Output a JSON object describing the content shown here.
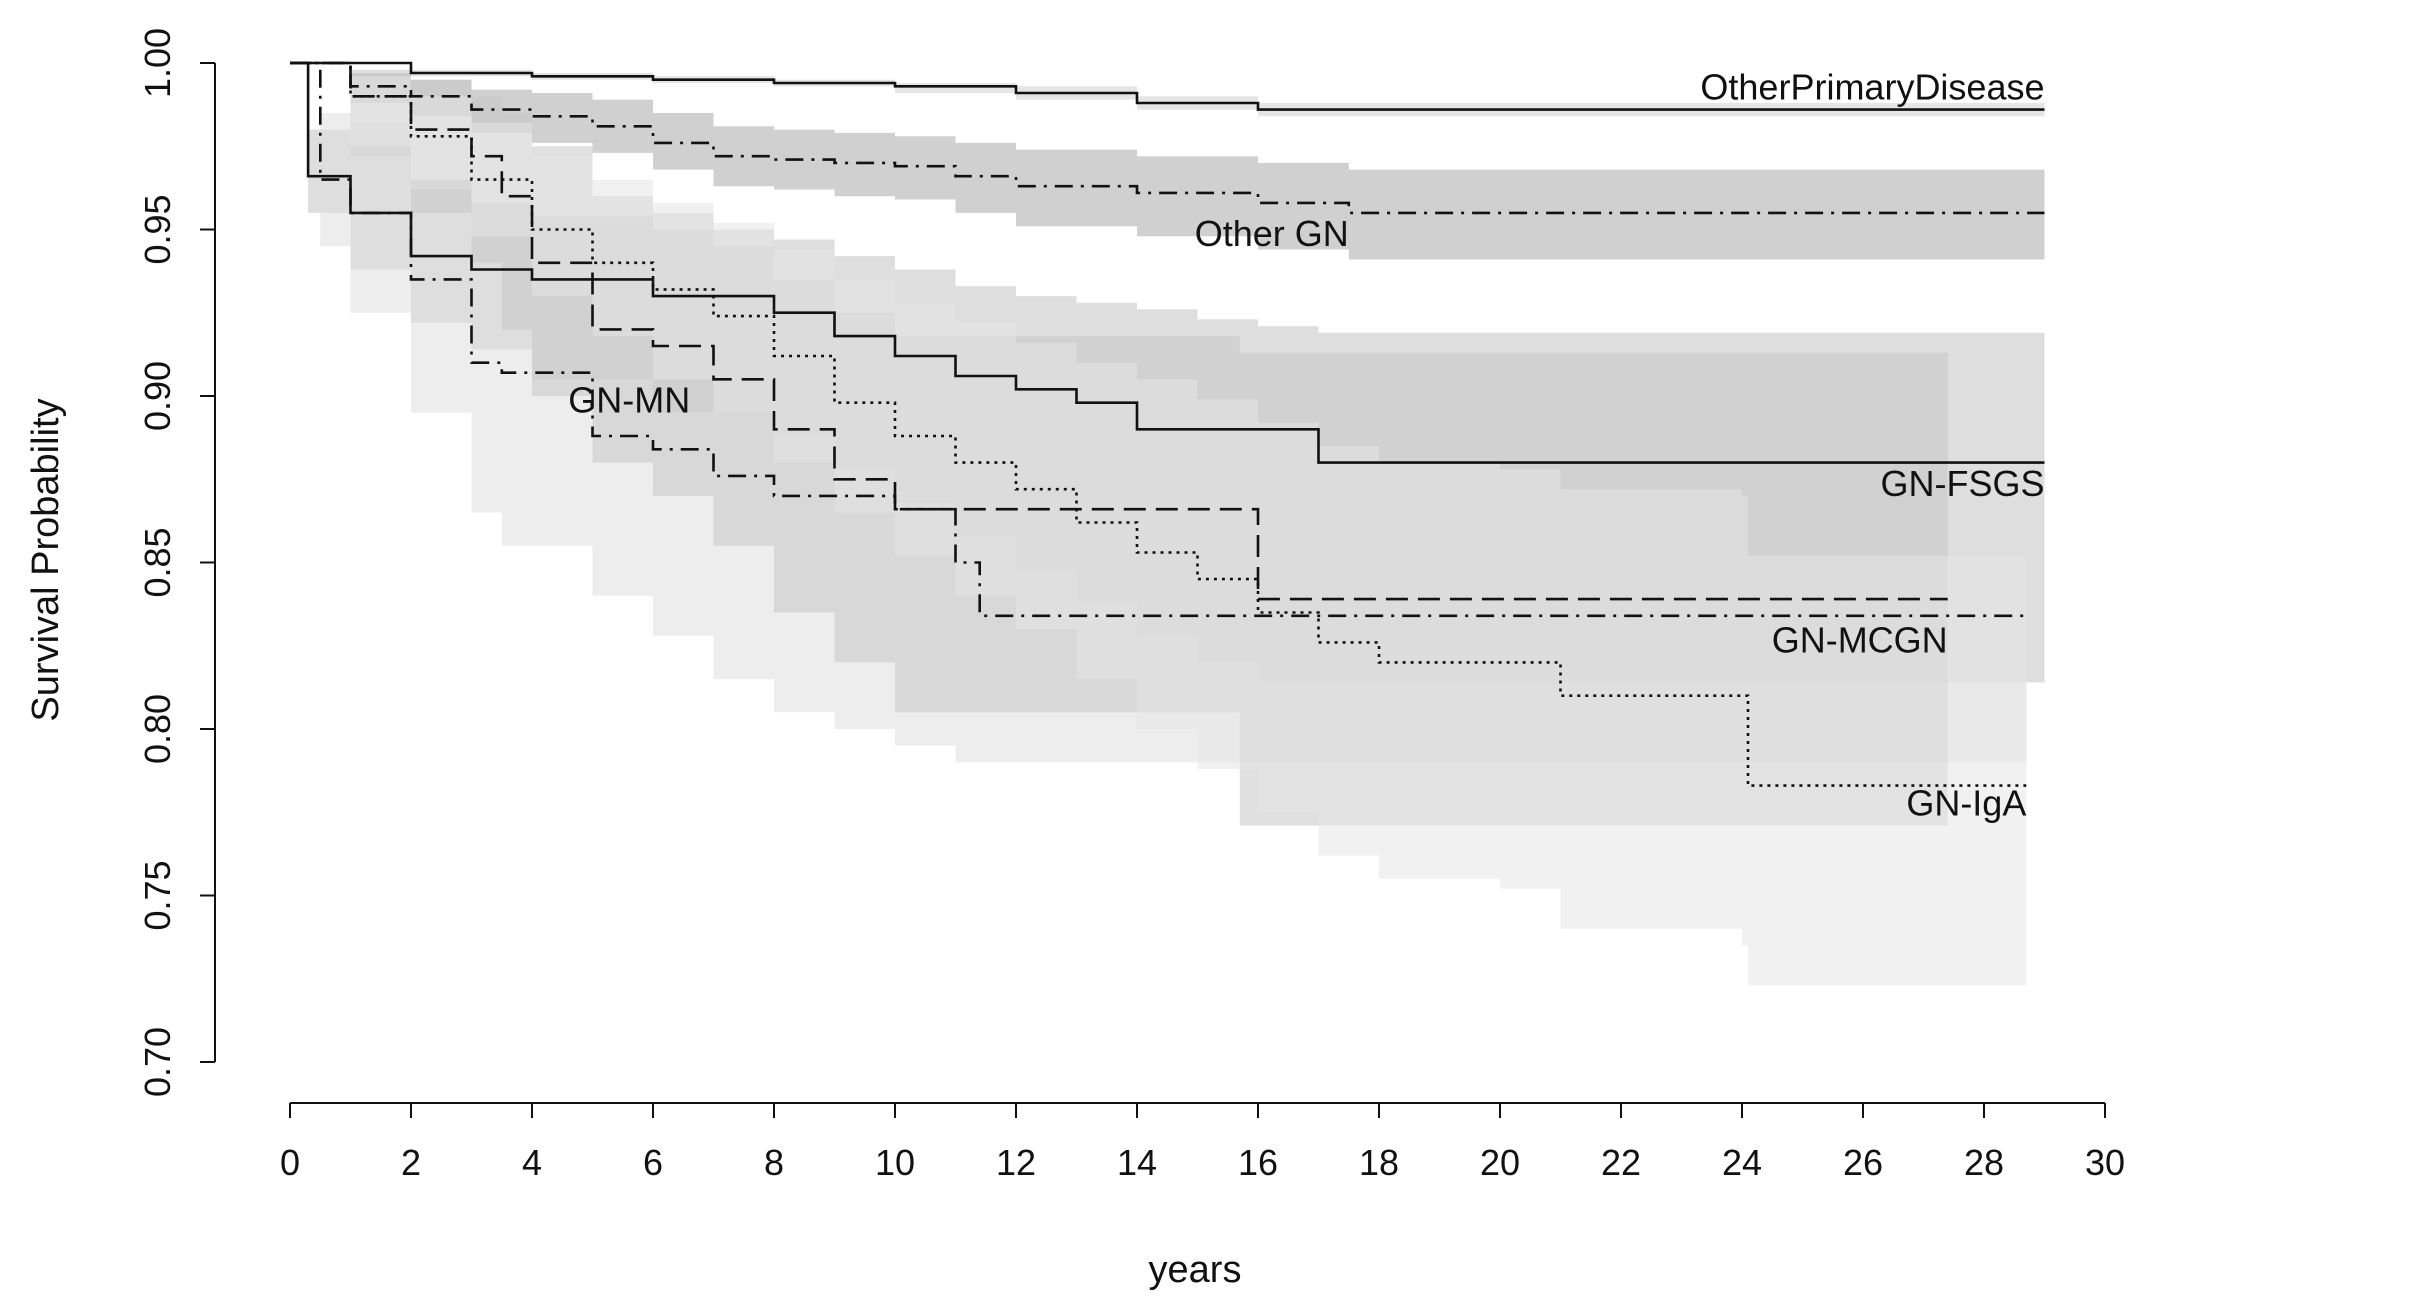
{
  "chart_data": {
    "type": "line",
    "title": "",
    "xlabel": "years",
    "ylabel": "Survival Probability",
    "xlim": [
      0,
      30
    ],
    "ylim": [
      0.7,
      1.0
    ],
    "x_ticks": [
      "0",
      "2",
      "4",
      "6",
      "8",
      "10",
      "12",
      "14",
      "16",
      "18",
      "20",
      "22",
      "24",
      "26",
      "28",
      "30"
    ],
    "y_ticks": [
      "0.70",
      "0.75",
      "0.80",
      "0.85",
      "0.90",
      "0.95",
      "1.00"
    ],
    "grid": false,
    "legend": "none",
    "series": [
      {
        "name": "OtherPrimaryDisease",
        "style": "solid",
        "x": [
          0,
          2,
          4,
          6,
          8,
          10,
          12,
          14,
          16,
          18,
          29
        ],
        "y": [
          1.0,
          0.997,
          0.996,
          0.995,
          0.994,
          0.993,
          0.991,
          0.988,
          0.986,
          0.986,
          0.986
        ],
        "ci_lower": [
          1.0,
          0.996,
          0.995,
          0.994,
          0.993,
          0.991,
          0.989,
          0.986,
          0.984,
          0.984,
          0.984
        ],
        "ci_upper": [
          1.0,
          0.998,
          0.997,
          0.996,
          0.995,
          0.994,
          0.993,
          0.99,
          0.988,
          0.988,
          0.988
        ]
      },
      {
        "name": "Other GN",
        "style": "dashdot",
        "x": [
          0,
          1,
          2,
          3,
          4,
          5,
          6,
          7,
          8,
          9,
          10,
          11,
          12,
          14,
          16,
          17.5,
          29
        ],
        "y": [
          1.0,
          0.993,
          0.99,
          0.986,
          0.984,
          0.981,
          0.976,
          0.972,
          0.971,
          0.97,
          0.969,
          0.966,
          0.963,
          0.961,
          0.958,
          0.955,
          0.955
        ],
        "ci_lower": [
          1.0,
          0.988,
          0.984,
          0.979,
          0.976,
          0.973,
          0.968,
          0.963,
          0.962,
          0.96,
          0.959,
          0.955,
          0.951,
          0.948,
          0.944,
          0.941,
          0.941
        ],
        "ci_upper": [
          1.0,
          0.997,
          0.995,
          0.992,
          0.991,
          0.989,
          0.985,
          0.981,
          0.98,
          0.979,
          0.978,
          0.976,
          0.974,
          0.972,
          0.97,
          0.968,
          0.968
        ]
      },
      {
        "name": "GN-FSGS",
        "style": "solid",
        "x": [
          0,
          0.3,
          1,
          2,
          3,
          4,
          6,
          8,
          9,
          10,
          11,
          12,
          13,
          14,
          15,
          16,
          17,
          29
        ],
        "y": [
          1.0,
          0.966,
          0.955,
          0.942,
          0.938,
          0.935,
          0.93,
          0.925,
          0.918,
          0.912,
          0.906,
          0.902,
          0.898,
          0.89,
          0.89,
          0.89,
          0.88,
          0.88
        ],
        "ci_lower": [
          1.0,
          0.955,
          0.938,
          0.922,
          0.914,
          0.905,
          0.895,
          0.888,
          0.878,
          0.868,
          0.858,
          0.848,
          0.838,
          0.828,
          0.82,
          0.814,
          0.814,
          0.814
        ],
        "ci_upper": [
          1.0,
          0.98,
          0.972,
          0.962,
          0.958,
          0.954,
          0.95,
          0.947,
          0.942,
          0.938,
          0.933,
          0.93,
          0.928,
          0.926,
          0.923,
          0.921,
          0.919,
          0.919
        ]
      },
      {
        "name": "GN-MCGN",
        "style": "dashdot",
        "x": [
          0,
          0.5,
          1,
          2,
          3,
          3.5,
          5,
          6,
          7,
          8,
          9,
          10,
          11,
          11.4,
          28.7
        ],
        "y": [
          1.0,
          0.965,
          0.955,
          0.935,
          0.91,
          0.907,
          0.888,
          0.884,
          0.876,
          0.87,
          0.87,
          0.866,
          0.85,
          0.834,
          0.834
        ],
        "ci_lower": [
          1.0,
          0.945,
          0.925,
          0.895,
          0.865,
          0.855,
          0.84,
          0.828,
          0.815,
          0.805,
          0.8,
          0.795,
          0.79,
          0.79,
          0.79
        ],
        "ci_upper": [
          1.0,
          0.985,
          0.975,
          0.965,
          0.95,
          0.945,
          0.935,
          0.93,
          0.925,
          0.92,
          0.917,
          0.915,
          0.912,
          0.912,
          0.912
        ]
      },
      {
        "name": "GN-MN",
        "style": "longdash",
        "x": [
          0,
          1,
          2,
          3,
          3.5,
          4,
          5,
          6,
          7,
          8,
          9,
          10,
          15.7,
          16,
          27.4
        ],
        "y": [
          1.0,
          0.99,
          0.98,
          0.972,
          0.96,
          0.94,
          0.92,
          0.915,
          0.905,
          0.89,
          0.875,
          0.866,
          0.866,
          0.839,
          0.839
        ],
        "ci_lower": [
          1.0,
          0.972,
          0.955,
          0.94,
          0.92,
          0.9,
          0.88,
          0.87,
          0.855,
          0.835,
          0.82,
          0.805,
          0.771,
          0.771,
          0.771
        ],
        "ci_upper": [
          1.0,
          0.998,
          0.995,
          0.99,
          0.985,
          0.975,
          0.96,
          0.955,
          0.945,
          0.935,
          0.925,
          0.918,
          0.913,
          0.913,
          0.913
        ]
      },
      {
        "name": "GN-IgA",
        "style": "dotted",
        "x": [
          0,
          1,
          2,
          3,
          4,
          5,
          6,
          7,
          8,
          9,
          10,
          11,
          12,
          13,
          14,
          15,
          16,
          17,
          18,
          20,
          21,
          24,
          24.1,
          28.7
        ],
        "y": [
          1.0,
          0.99,
          0.978,
          0.965,
          0.95,
          0.94,
          0.932,
          0.924,
          0.912,
          0.898,
          0.888,
          0.88,
          0.872,
          0.862,
          0.853,
          0.845,
          0.835,
          0.826,
          0.82,
          0.82,
          0.81,
          0.81,
          0.783,
          0.783
        ],
        "ci_lower": [
          1.0,
          0.982,
          0.965,
          0.948,
          0.93,
          0.918,
          0.905,
          0.895,
          0.88,
          0.865,
          0.852,
          0.84,
          0.83,
          0.815,
          0.8,
          0.788,
          0.775,
          0.762,
          0.755,
          0.752,
          0.74,
          0.735,
          0.723,
          0.723
        ],
        "ci_upper": [
          1.0,
          0.996,
          0.99,
          0.982,
          0.972,
          0.965,
          0.958,
          0.952,
          0.944,
          0.935,
          0.928,
          0.922,
          0.916,
          0.91,
          0.905,
          0.899,
          0.892,
          0.885,
          0.88,
          0.878,
          0.872,
          0.87,
          0.852,
          0.848
        ]
      }
    ],
    "annotations": [
      {
        "text": "OtherPrimaryDisease",
        "x": 29,
        "y": 0.989,
        "anchor": "end"
      },
      {
        "text": "Other GN",
        "x": 17.5,
        "y": 0.945,
        "anchor": "end"
      },
      {
        "text": "GN-MN",
        "x": 4.6,
        "y": 0.895,
        "anchor": "start"
      },
      {
        "text": "GN-FSGS",
        "x": 29,
        "y": 0.87,
        "anchor": "end"
      },
      {
        "text": "GN-MCGN",
        "x": 27.4,
        "y": 0.823,
        "anchor": "end"
      },
      {
        "text": "GN-IgA",
        "x": 28.7,
        "y": 0.774,
        "anchor": "end"
      }
    ]
  },
  "colors": {
    "lines": "#111111",
    "ci_fills": [
      "#cfcfcf",
      "#a9a9a9",
      "#c2c2c2",
      "#dedede",
      "#c7c7c7",
      "#e6e6e6"
    ]
  }
}
